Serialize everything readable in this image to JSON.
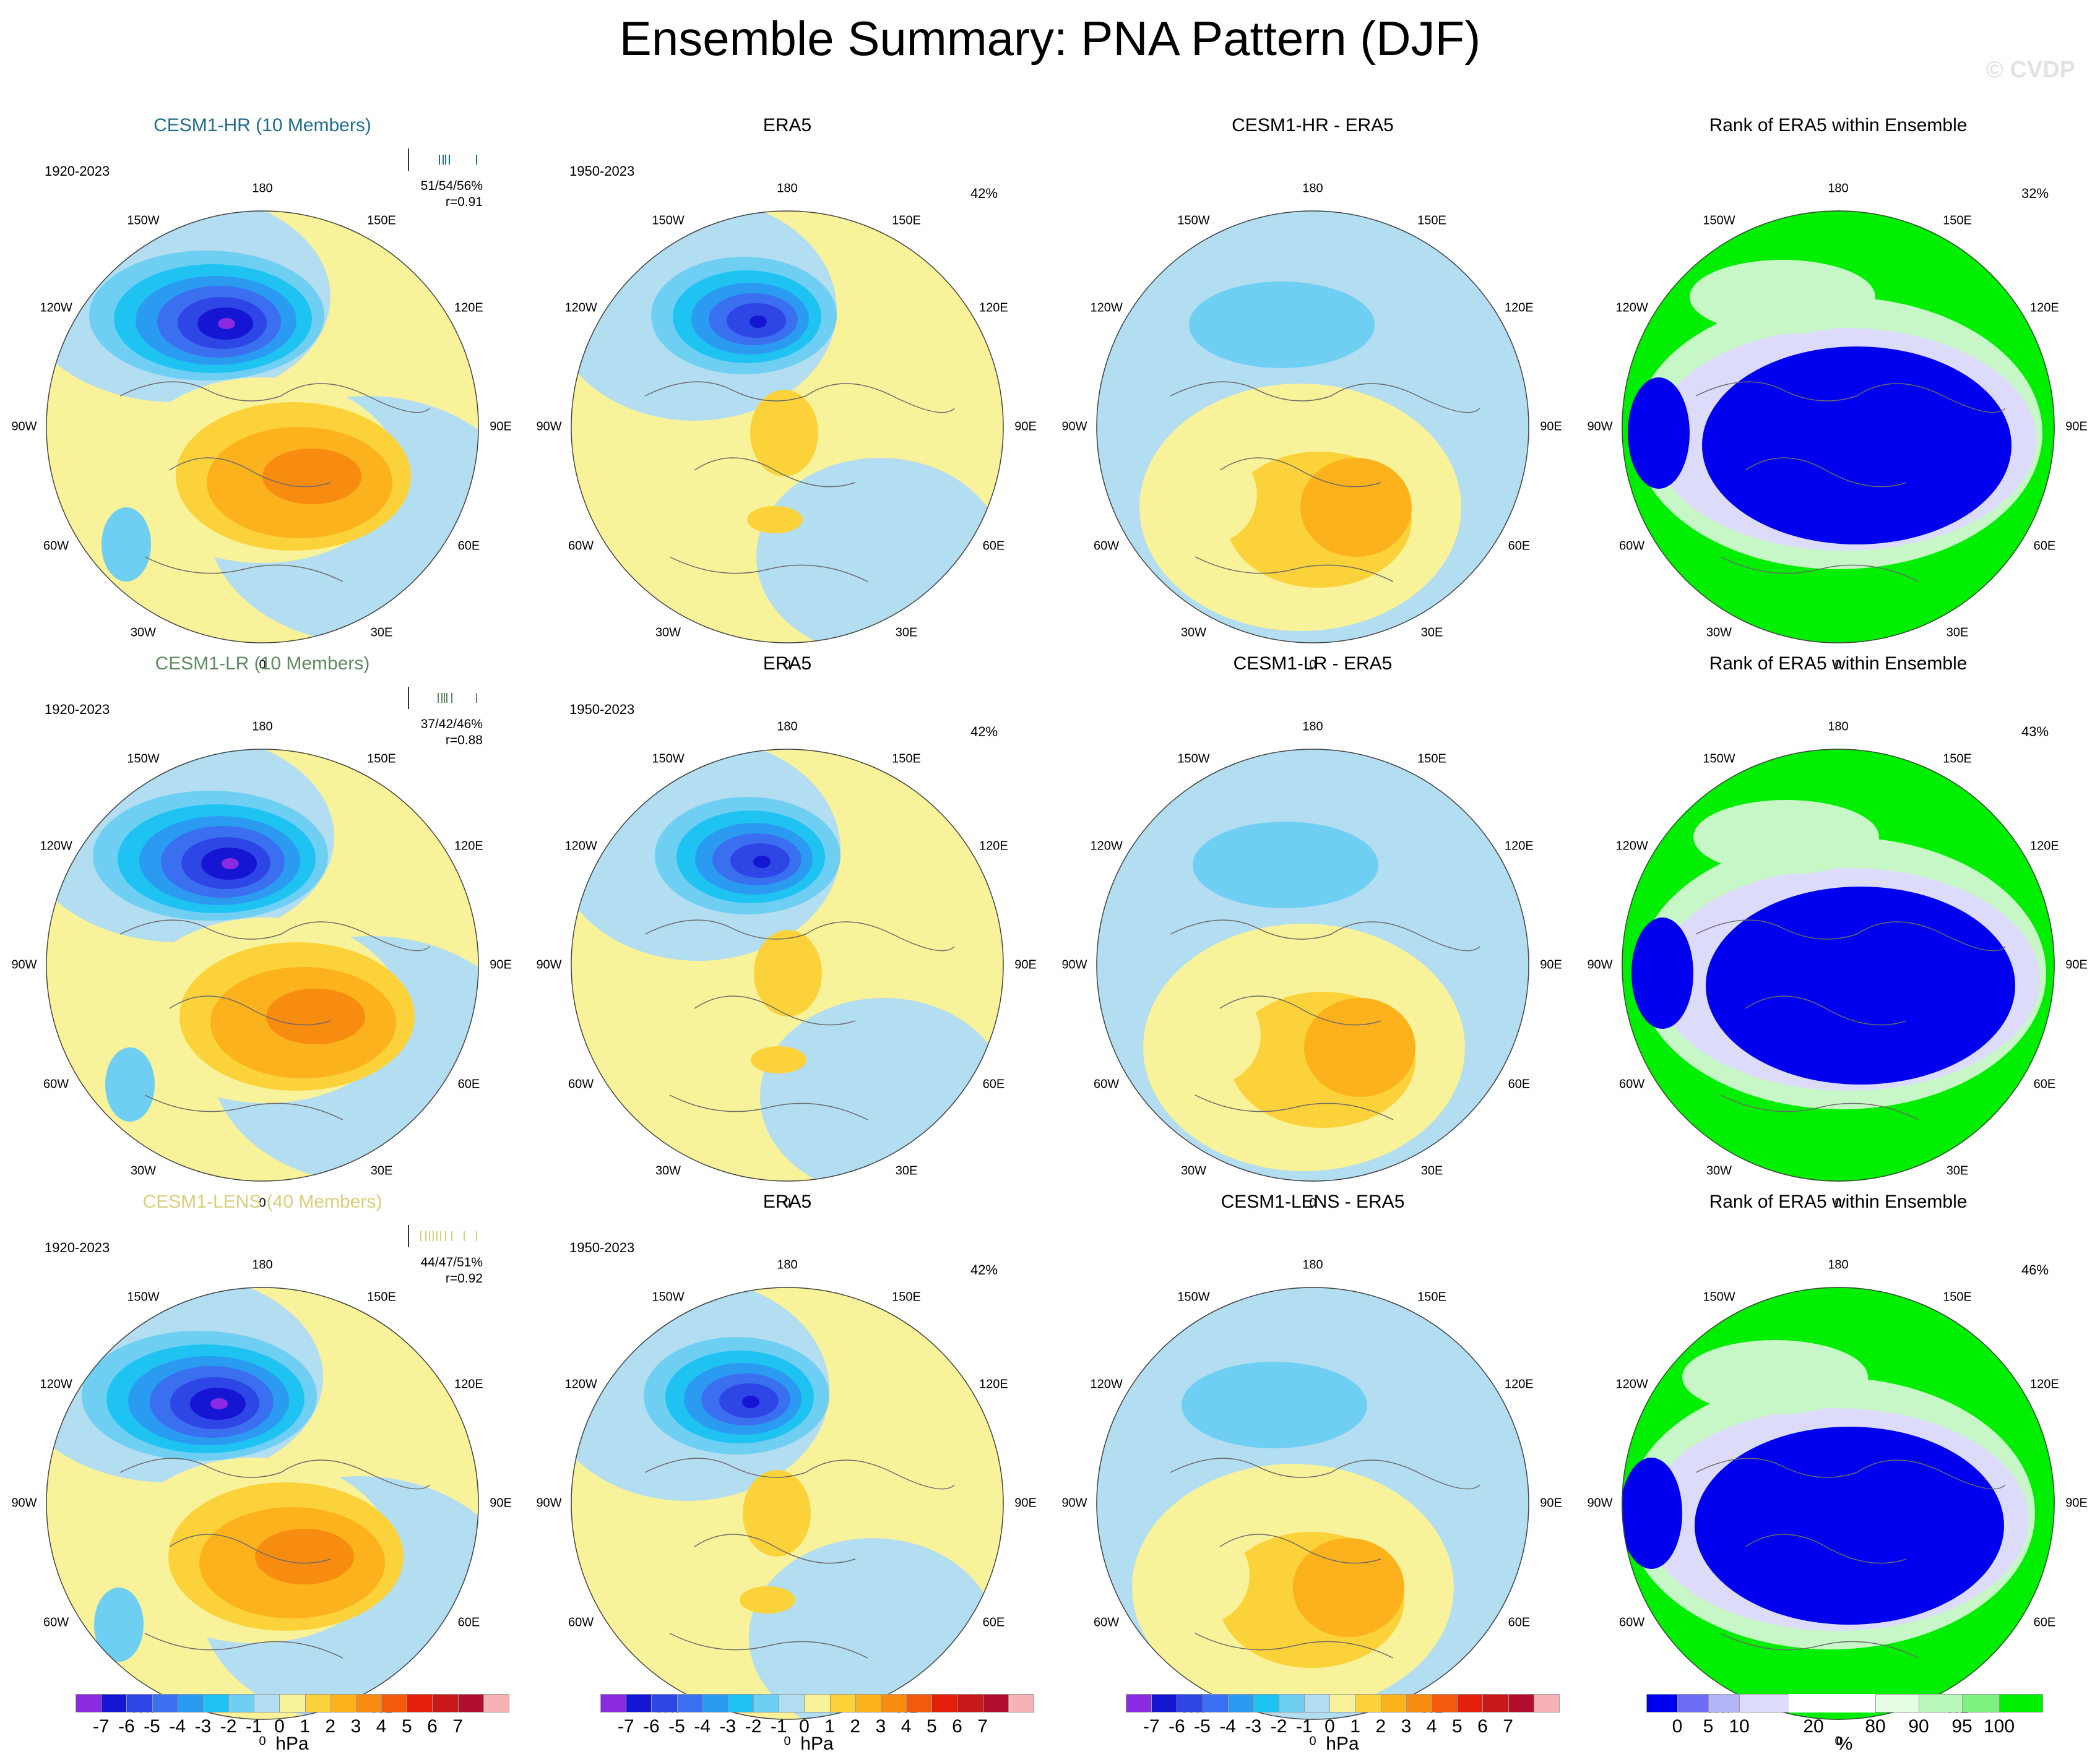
{
  "title": "Ensemble Summary: PNA Pattern (DJF)",
  "watermark": "© CVDP",
  "lon_labels": {
    "l180": "180",
    "l150w": "150W",
    "l150e": "150E",
    "l120w": "120W",
    "l120e": "120E",
    "l90w": "90W",
    "l90e": "90E",
    "l60w": "60W",
    "l60e": "60E",
    "l30w": "30W",
    "l30e": "30E",
    "l0": "0"
  },
  "rows": [
    {
      "model": {
        "title": "CESM1-HR (10 Members)",
        "color": "#1f6d8f",
        "years": "1920-2023",
        "stats": "51/54/56%",
        "r": "r=0.91"
      },
      "obs": {
        "title": "ERA5",
        "years": "1950-2023",
        "pct": "42%"
      },
      "diff": {
        "title": "CESM1-HR - ERA5"
      },
      "rank": {
        "title": "Rank of ERA5 within Ensemble",
        "pct": "32%"
      }
    },
    {
      "model": {
        "title": "CESM1-LR (10 Members)",
        "color": "#5f8a5f",
        "years": "1920-2023",
        "stats": "37/42/46%",
        "r": "r=0.88"
      },
      "obs": {
        "title": "ERA5",
        "years": "1950-2023",
        "pct": "42%"
      },
      "diff": {
        "title": "CESM1-LR - ERA5"
      },
      "rank": {
        "title": "Rank of ERA5 within Ensemble",
        "pct": "43%"
      }
    },
    {
      "model": {
        "title": "CESM1-LENS (40 Members)",
        "color": "#d8cf7a",
        "years": "1920-2023",
        "stats": "44/47/51%",
        "r": "r=0.92"
      },
      "obs": {
        "title": "ERA5",
        "years": "1950-2023",
        "pct": "42%"
      },
      "diff": {
        "title": "CESM1-LENS - ERA5"
      },
      "rank": {
        "title": "Rank of ERA5 within Ensemble",
        "pct": "46%"
      }
    }
  ],
  "colorbar_hpa": {
    "colors": [
      "#8a2be2",
      "#1515d4",
      "#2f46e6",
      "#3a6ff0",
      "#2b9bf2",
      "#1ec3f2",
      "#6fcff2",
      "#b3ddf0",
      "#f8f29a",
      "#fcd23a",
      "#fbb21c",
      "#f88c10",
      "#f45a0c",
      "#e41f0d",
      "#c81818",
      "#b00e2c",
      "#f7b2b6"
    ],
    "ticks": [
      "-7",
      "-6",
      "-5",
      "-4",
      "-3",
      "-2",
      "-1",
      "0",
      "1",
      "2",
      "3",
      "4",
      "5",
      "6",
      "7"
    ],
    "units": "hPa"
  },
  "colorbar_rank": {
    "colors": [
      "#0000ee",
      "#6b6bf4",
      "#b4b4f8",
      "#dcdcfa",
      "#ffffff",
      "#ffffff",
      "#e4fbe4",
      "#b8f7b8",
      "#7ef27e",
      "#00ee00"
    ],
    "ticks": [
      "0",
      "5",
      "10",
      "20",
      "80",
      "90",
      "95",
      "100"
    ],
    "units": "%"
  },
  "map_colors": {
    "light_blue": "#b3ddf0",
    "blue1": "#6fcff2",
    "blue2": "#1ec3f2",
    "blue3": "#2b9bf2",
    "blue4": "#3a6ff0",
    "blue5": "#2f46e6",
    "blue6": "#1515d4",
    "purple": "#8a2be2",
    "yellow": "#f8f29a",
    "gold": "#fcd23a",
    "orange1": "#fbb21c",
    "orange2": "#f88c10",
    "rank_blue": "#0000ee",
    "rank_green": "#00ee00",
    "rank_lightgreen": "#c7f7c7",
    "rank_lavender": "#dcdcfa"
  }
}
